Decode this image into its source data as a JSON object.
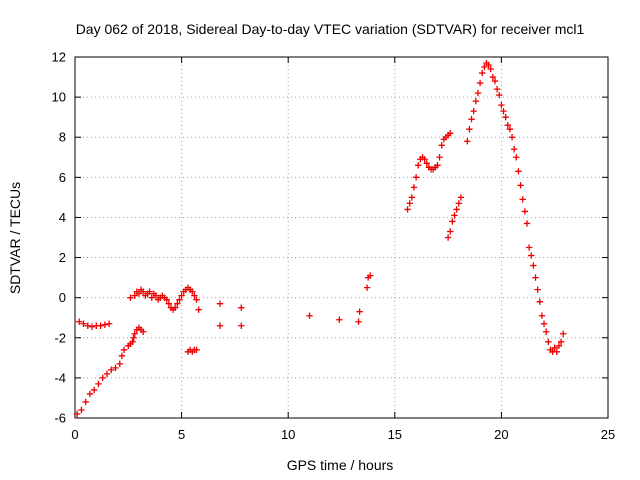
{
  "chart_data": {
    "type": "scatter",
    "title": "Day 062 of 2018, Sidereal Day-to-day VTEC variation (SDTVAR) for receiver mcl1",
    "xlabel": "GPS time / hours",
    "ylabel": "SDTVAR / TECUs",
    "xlim": [
      0,
      25
    ],
    "ylim": [
      -6,
      12
    ],
    "xticks": [
      0,
      5,
      10,
      15,
      20,
      25
    ],
    "yticks": [
      -6,
      -4,
      -2,
      0,
      2,
      4,
      6,
      8,
      10,
      12
    ],
    "grid": true,
    "marker": "plus",
    "color": "#ee0000",
    "series": [
      {
        "name": "segment-1",
        "points": [
          [
            0.1,
            -5.8
          ],
          [
            0.3,
            -5.6
          ],
          [
            0.5,
            -5.2
          ],
          [
            0.7,
            -4.8
          ],
          [
            0.9,
            -4.6
          ],
          [
            1.1,
            -4.3
          ],
          [
            1.3,
            -4.0
          ],
          [
            1.5,
            -3.8
          ],
          [
            1.7,
            -3.6
          ],
          [
            1.9,
            -3.5
          ],
          [
            2.1,
            -3.3
          ],
          [
            2.2,
            -2.9
          ],
          [
            2.3,
            -2.6
          ],
          [
            2.5,
            -2.4
          ],
          [
            2.6,
            -2.3
          ],
          [
            2.7,
            -2.2
          ],
          [
            2.75,
            -2.0
          ],
          [
            2.8,
            -1.8
          ],
          [
            2.9,
            -1.6
          ],
          [
            3.0,
            -1.5
          ],
          [
            3.1,
            -1.6
          ],
          [
            3.2,
            -1.7
          ]
        ]
      },
      {
        "name": "segment-2",
        "points": [
          [
            0.2,
            -1.2
          ],
          [
            0.4,
            -1.3
          ],
          [
            0.6,
            -1.4
          ],
          [
            0.8,
            -1.45
          ],
          [
            1.0,
            -1.4
          ],
          [
            1.2,
            -1.4
          ],
          [
            1.4,
            -1.35
          ],
          [
            1.6,
            -1.3
          ]
        ]
      },
      {
        "name": "segment-3",
        "points": [
          [
            2.6,
            0.0
          ],
          [
            2.8,
            0.1
          ],
          [
            2.9,
            0.3
          ],
          [
            3.0,
            0.2
          ],
          [
            3.1,
            0.4
          ],
          [
            3.2,
            0.3
          ],
          [
            3.3,
            0.1
          ],
          [
            3.4,
            0.2
          ],
          [
            3.5,
            0.3
          ],
          [
            3.6,
            0.0
          ],
          [
            3.7,
            0.2
          ],
          [
            3.8,
            0.1
          ],
          [
            3.9,
            -0.1
          ],
          [
            4.0,
            0.0
          ],
          [
            4.1,
            0.1
          ],
          [
            4.2,
            0.0
          ],
          [
            4.3,
            -0.1
          ],
          [
            4.4,
            -0.3
          ],
          [
            4.5,
            -0.5
          ],
          [
            4.6,
            -0.6
          ],
          [
            4.7,
            -0.5
          ],
          [
            4.8,
            -0.3
          ],
          [
            4.9,
            -0.1
          ],
          [
            5.0,
            0.1
          ],
          [
            5.1,
            0.3
          ],
          [
            5.2,
            0.4
          ],
          [
            5.3,
            0.5
          ],
          [
            5.4,
            0.4
          ],
          [
            5.5,
            0.3
          ],
          [
            5.6,
            0.1
          ],
          [
            5.7,
            -0.1
          ],
          [
            5.8,
            -0.6
          ]
        ]
      },
      {
        "name": "segment-4",
        "points": [
          [
            5.3,
            -2.7
          ],
          [
            5.4,
            -2.6
          ],
          [
            5.5,
            -2.7
          ],
          [
            5.6,
            -2.6
          ],
          [
            5.7,
            -2.6
          ]
        ]
      },
      {
        "name": "segment-5",
        "points": [
          [
            6.8,
            -0.3
          ],
          [
            6.8,
            -1.4
          ],
          [
            7.8,
            -0.5
          ],
          [
            7.8,
            -1.4
          ],
          [
            11.0,
            -0.9
          ],
          [
            12.4,
            -1.1
          ],
          [
            13.3,
            -1.2
          ],
          [
            13.35,
            -0.7
          ],
          [
            13.7,
            0.5
          ],
          [
            13.75,
            1.0
          ],
          [
            13.85,
            1.1
          ]
        ]
      },
      {
        "name": "segment-6",
        "points": [
          [
            15.6,
            4.4
          ],
          [
            15.7,
            4.7
          ],
          [
            15.8,
            5.0
          ],
          [
            15.9,
            5.5
          ],
          [
            16.0,
            6.0
          ],
          [
            16.1,
            6.6
          ],
          [
            16.2,
            6.9
          ],
          [
            16.3,
            7.0
          ],
          [
            16.4,
            6.9
          ],
          [
            16.5,
            6.7
          ],
          [
            16.6,
            6.5
          ],
          [
            16.7,
            6.4
          ],
          [
            16.8,
            6.4
          ],
          [
            16.9,
            6.5
          ],
          [
            17.0,
            6.6
          ],
          [
            17.1,
            7.0
          ],
          [
            17.2,
            7.6
          ],
          [
            17.3,
            7.9
          ],
          [
            17.4,
            8.0
          ],
          [
            17.5,
            8.1
          ],
          [
            17.6,
            8.2
          ]
        ]
      },
      {
        "name": "segment-7",
        "points": [
          [
            17.5,
            3.0
          ],
          [
            17.6,
            3.3
          ],
          [
            17.7,
            3.8
          ],
          [
            17.8,
            4.1
          ],
          [
            17.9,
            4.4
          ],
          [
            18.0,
            4.7
          ],
          [
            18.1,
            5.0
          ]
        ]
      },
      {
        "name": "segment-8",
        "points": [
          [
            18.4,
            7.8
          ],
          [
            18.5,
            8.4
          ],
          [
            18.6,
            8.9
          ],
          [
            18.7,
            9.3
          ],
          [
            18.8,
            9.8
          ],
          [
            18.9,
            10.2
          ],
          [
            19.0,
            10.7
          ],
          [
            19.1,
            11.2
          ],
          [
            19.2,
            11.5
          ],
          [
            19.3,
            11.7
          ],
          [
            19.4,
            11.6
          ],
          [
            19.5,
            11.4
          ],
          [
            19.6,
            11.0
          ],
          [
            19.7,
            10.8
          ],
          [
            19.8,
            10.4
          ],
          [
            19.9,
            10.1
          ],
          [
            20.0,
            9.6
          ],
          [
            20.1,
            9.3
          ],
          [
            20.2,
            9.0
          ],
          [
            20.3,
            8.6
          ],
          [
            20.4,
            8.4
          ],
          [
            20.5,
            8.0
          ],
          [
            20.6,
            7.4
          ],
          [
            20.7,
            7.0
          ],
          [
            20.8,
            6.3
          ],
          [
            20.9,
            5.6
          ],
          [
            21.0,
            4.9
          ],
          [
            21.1,
            4.3
          ],
          [
            21.2,
            3.7
          ],
          [
            21.3,
            2.5
          ],
          [
            21.4,
            2.1
          ],
          [
            21.5,
            1.6
          ],
          [
            21.6,
            1.0
          ],
          [
            21.7,
            0.4
          ],
          [
            21.8,
            -0.2
          ],
          [
            21.9,
            -0.9
          ],
          [
            22.0,
            -1.3
          ],
          [
            22.1,
            -1.7
          ],
          [
            22.2,
            -2.2
          ],
          [
            22.3,
            -2.6
          ],
          [
            22.4,
            -2.7
          ],
          [
            22.5,
            -2.5
          ],
          [
            22.6,
            -2.7
          ],
          [
            22.7,
            -2.4
          ],
          [
            22.8,
            -2.2
          ],
          [
            22.9,
            -1.8
          ]
        ]
      }
    ]
  }
}
